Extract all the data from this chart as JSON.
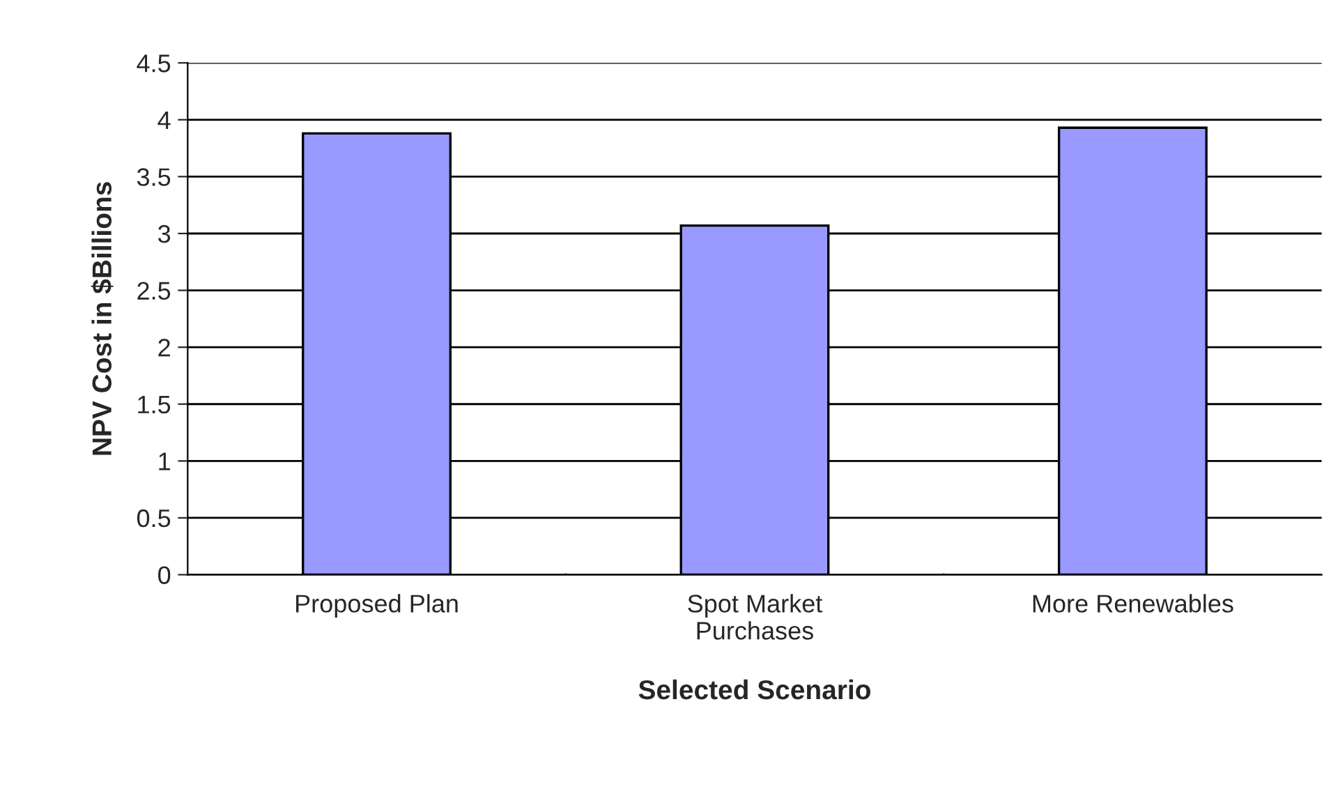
{
  "chart_data": {
    "type": "bar",
    "xlabel": "Selected Scenario",
    "ylabel": "NPV Cost in $Billions",
    "categories": [
      "Proposed Plan",
      "Spot Market\nPurchases",
      "More Renewables"
    ],
    "values": [
      3.88,
      3.07,
      3.93
    ],
    "color": "#9999ff",
    "ylim": [
      0,
      4.5
    ],
    "yticks": [
      0,
      0.5,
      1,
      1.5,
      2,
      2.5,
      3,
      3.5,
      4,
      4.5
    ],
    "grid": "y",
    "legend": false
  }
}
